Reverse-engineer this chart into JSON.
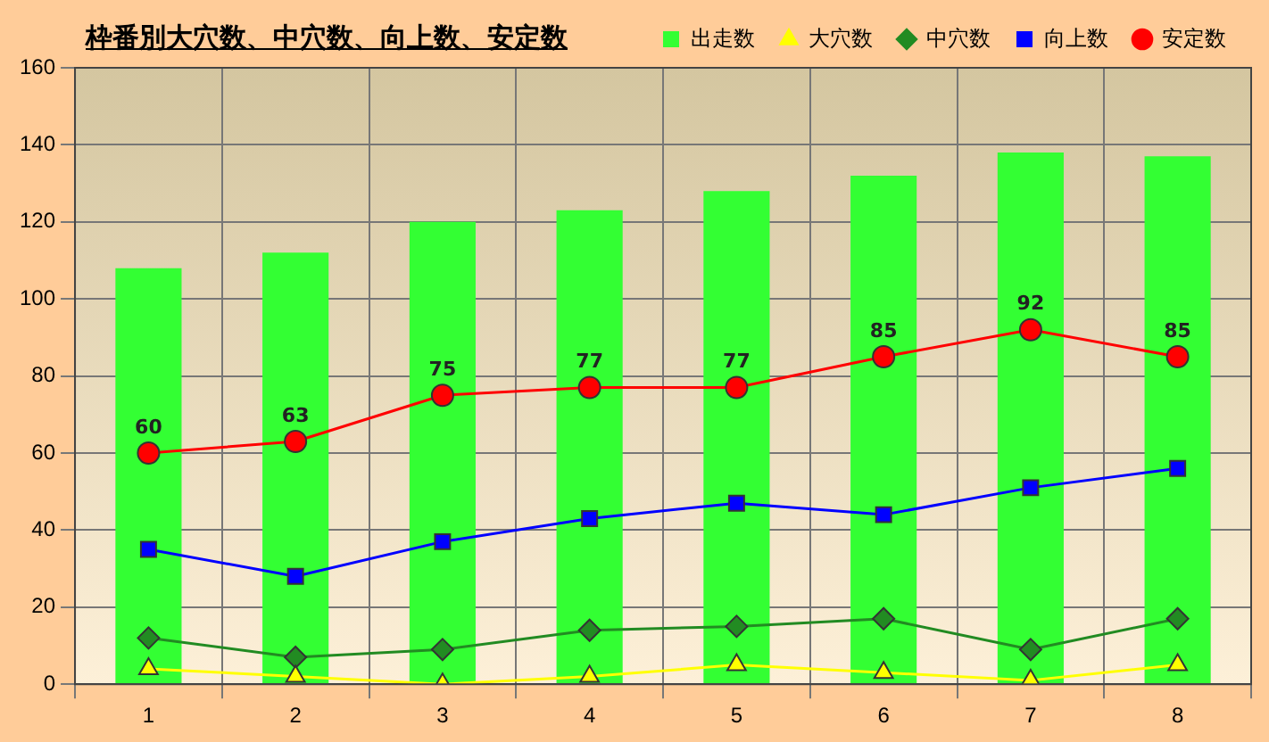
{
  "chart_data": {
    "type": "bar",
    "title": "枠番別大穴数、中穴数、向上数、安定数",
    "categories": [
      "1",
      "2",
      "3",
      "4",
      "5",
      "6",
      "7",
      "8"
    ],
    "series": [
      {
        "name": "出走数",
        "color": "#33ff33",
        "values": [
          108,
          112,
          120,
          123,
          128,
          132,
          138,
          137
        ]
      },
      {
        "name": "大穴数",
        "type": "line",
        "color": "#ffff00",
        "marker": "triangle",
        "values": [
          4,
          2,
          0,
          2,
          5,
          3,
          1,
          5
        ]
      },
      {
        "name": "中穴数",
        "type": "line",
        "color": "#228b22",
        "marker": "diamond",
        "values": [
          12,
          7,
          9,
          14,
          15,
          17,
          9,
          17
        ]
      },
      {
        "name": "向上数",
        "type": "line",
        "color": "#0000ff",
        "marker": "square",
        "values": [
          35,
          28,
          37,
          43,
          47,
          44,
          51,
          56
        ]
      },
      {
        "name": "安定数",
        "type": "line",
        "color": "#ff0000",
        "marker": "circle",
        "values": [
          60,
          63,
          75,
          77,
          77,
          85,
          92,
          85
        ],
        "value_labels": [
          "60",
          "63",
          "75",
          "77",
          "77",
          "85",
          "92",
          "85"
        ]
      }
    ],
    "ylim": [
      0,
      160
    ],
    "yticks": [
      0,
      20,
      40,
      60,
      80,
      100,
      120,
      140,
      160
    ],
    "grid": true,
    "legend": "top right"
  }
}
